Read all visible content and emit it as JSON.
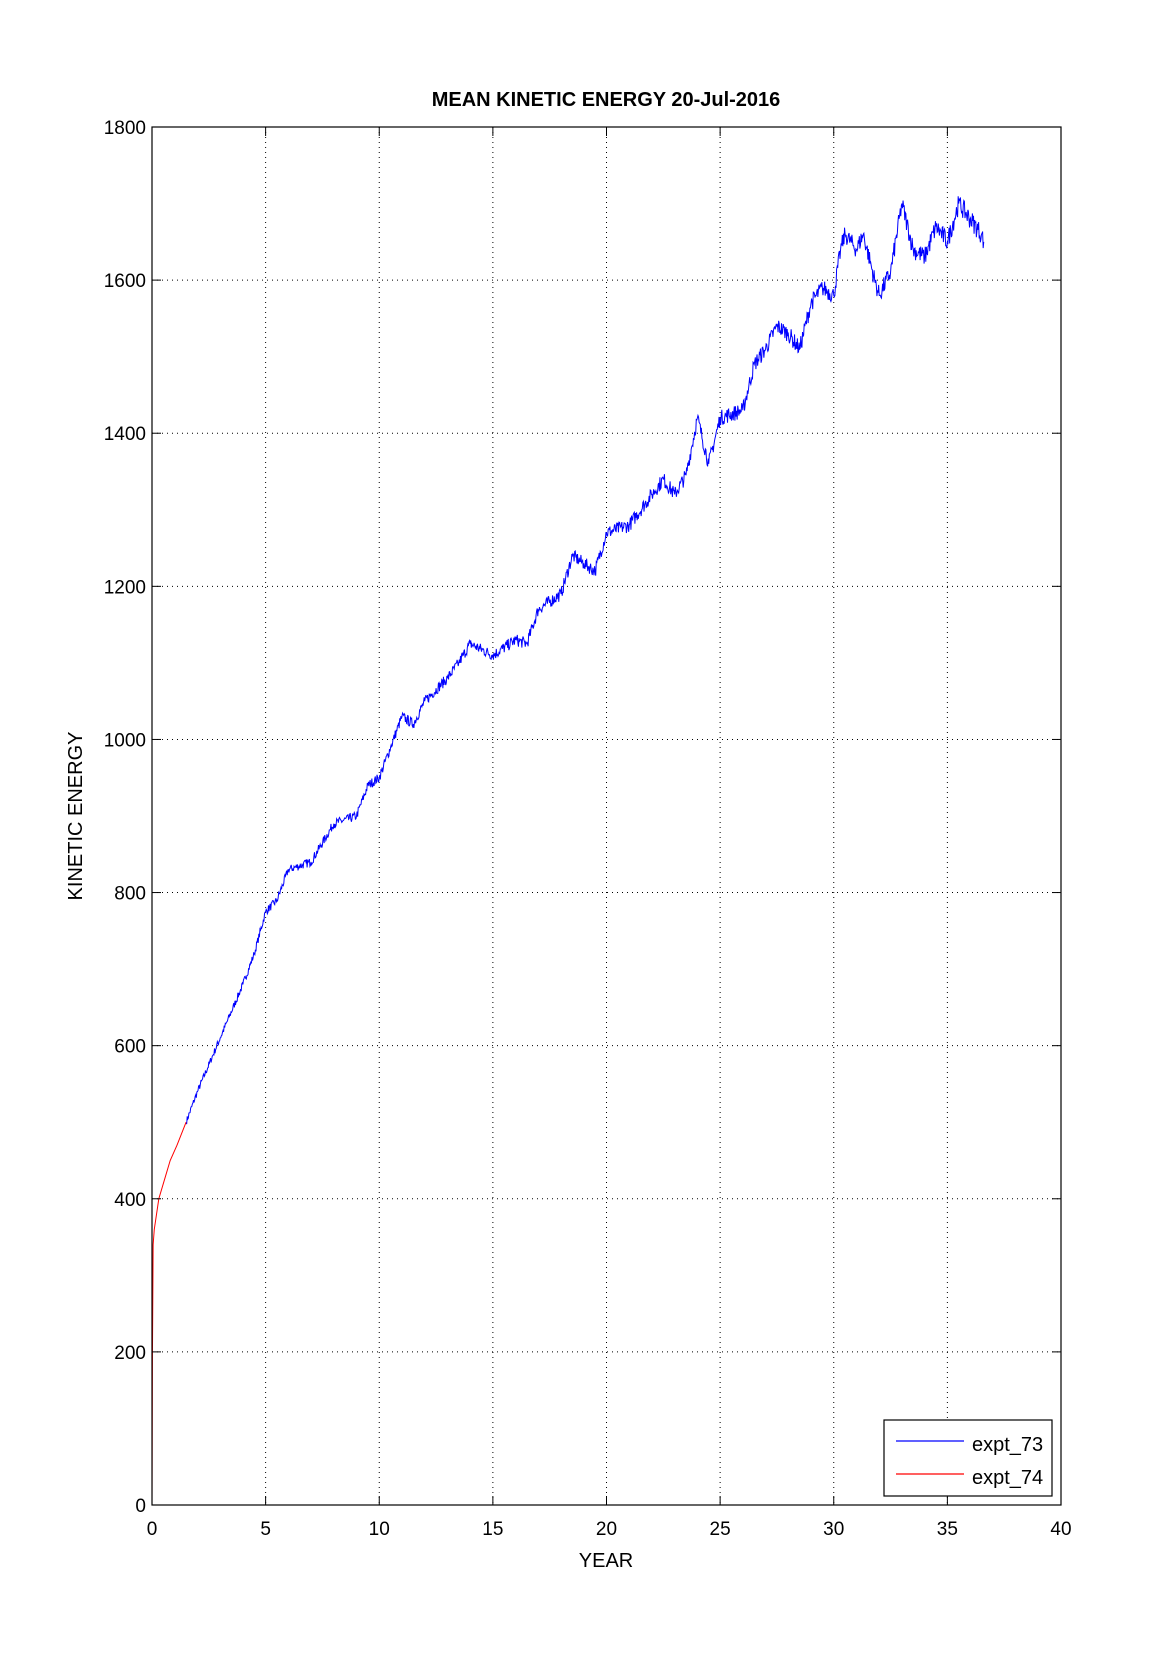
{
  "chart_data": {
    "type": "line",
    "title": "MEAN KINETIC ENERGY 20-Jul-2016",
    "xlabel": "YEAR",
    "ylabel": "KINETIC ENERGY",
    "xlim": [
      0,
      40
    ],
    "ylim": [
      0,
      1800
    ],
    "xticks": [
      0,
      5,
      10,
      15,
      20,
      25,
      30,
      35,
      40
    ],
    "yticks": [
      0,
      200,
      400,
      600,
      800,
      1000,
      1200,
      1400,
      1600,
      1800
    ],
    "grid": true,
    "legend_position": "bottom-right",
    "series": [
      {
        "name": "expt_73",
        "color": "#0000ff",
        "x": [
          1.5,
          2,
          3,
          4,
          4.5,
          5,
          5.5,
          6,
          7,
          8,
          9,
          9.5,
          10,
          10.5,
          11,
          11.5,
          12,
          13,
          13.5,
          14,
          15,
          16,
          16.5,
          17,
          18,
          18.5,
          19,
          19.5,
          20,
          21,
          22,
          22.5,
          23,
          23.5,
          24,
          24.5,
          25,
          26,
          26.5,
          27,
          27.5,
          28,
          28.5,
          29,
          29.5,
          30,
          30.3,
          30.5,
          31,
          31.3,
          31.8,
          32,
          32.5,
          33,
          33.5,
          34,
          34.5,
          35,
          35.5,
          36,
          36.5,
          36.6
        ],
        "y": [
          500,
          540,
          610,
          680,
          720,
          775,
          790,
          830,
          840,
          890,
          900,
          940,
          950,
          990,
          1030,
          1020,
          1050,
          1080,
          1100,
          1125,
          1110,
          1130,
          1125,
          1170,
          1190,
          1240,
          1230,
          1220,
          1270,
          1280,
          1320,
          1340,
          1320,
          1345,
          1420,
          1360,
          1420,
          1430,
          1490,
          1510,
          1540,
          1530,
          1510,
          1570,
          1590,
          1580,
          1640,
          1660,
          1640,
          1660,
          1600,
          1580,
          1610,
          1700,
          1640,
          1630,
          1670,
          1650,
          1700,
          1680,
          1660,
          1650
        ]
      },
      {
        "name": "expt_74",
        "color": "#ff0000",
        "x": [
          0,
          0.02,
          0.05,
          0.1,
          0.3,
          0.6,
          0.8,
          1.1,
          1.5
        ],
        "y": [
          0,
          200,
          340,
          360,
          400,
          430,
          450,
          470,
          500
        ]
      }
    ]
  }
}
